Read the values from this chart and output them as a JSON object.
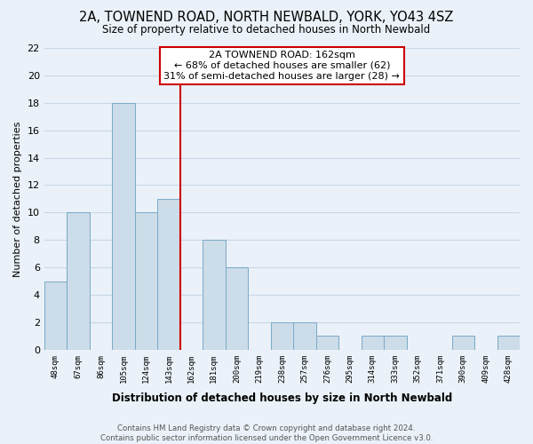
{
  "title": "2A, TOWNEND ROAD, NORTH NEWBALD, YORK, YO43 4SZ",
  "subtitle": "Size of property relative to detached houses in North Newbald",
  "xlabel": "Distribution of detached houses by size in North Newbald",
  "ylabel": "Number of detached properties",
  "bin_labels": [
    "48sqm",
    "67sqm",
    "86sqm",
    "105sqm",
    "124sqm",
    "143sqm",
    "162sqm",
    "181sqm",
    "200sqm",
    "219sqm",
    "238sqm",
    "257sqm",
    "276sqm",
    "295sqm",
    "314sqm",
    "333sqm",
    "352sqm",
    "371sqm",
    "390sqm",
    "409sqm",
    "428sqm"
  ],
  "bar_heights": [
    5,
    10,
    0,
    18,
    10,
    11,
    0,
    8,
    6,
    0,
    2,
    2,
    1,
    0,
    1,
    1,
    0,
    0,
    1,
    0,
    1
  ],
  "bar_color": "#ccdce8",
  "bar_edge_color": "#7aaac8",
  "reference_line_x": 5.5,
  "reference_line_color": "#cc0000",
  "ylim": [
    0,
    22
  ],
  "yticks": [
    0,
    2,
    4,
    6,
    8,
    10,
    12,
    14,
    16,
    18,
    20,
    22
  ],
  "annotation_title": "2A TOWNEND ROAD: 162sqm",
  "annotation_line1": "← 68% of detached houses are smaller (62)",
  "annotation_line2": "31% of semi-detached houses are larger (28) →",
  "annotation_box_color": "#ffffff",
  "annotation_box_edge_color": "#cc0000",
  "footer_line1": "Contains HM Land Registry data © Crown copyright and database right 2024.",
  "footer_line2": "Contains public sector information licensed under the Open Government Licence v3.0.",
  "grid_color": "#c8d8e8",
  "background_color": "#eaf1f8"
}
